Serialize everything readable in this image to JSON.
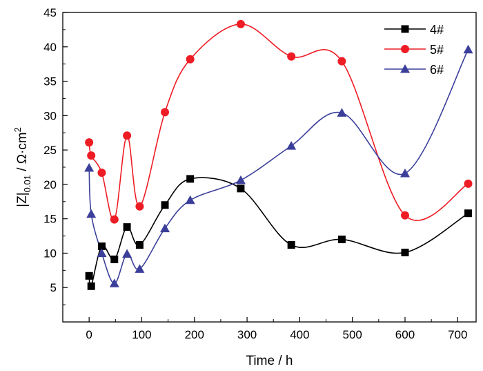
{
  "chart_data": {
    "type": "line",
    "title": "",
    "xlabel": "Time / h",
    "ylabel": {
      "prefix": "|Z|",
      "subscript": "0.01",
      "unit": " / Ω·cm",
      "superscript": "2"
    },
    "xlim": [
      -50,
      735
    ],
    "ylim": [
      0,
      45
    ],
    "xticks": [
      0,
      100,
      200,
      300,
      400,
      500,
      600,
      700
    ],
    "yticks": [
      5,
      10,
      15,
      20,
      25,
      30,
      35,
      40,
      45
    ],
    "grid": false,
    "legend_position": "top-right",
    "series": [
      {
        "name": "4#",
        "color": "#000000",
        "marker": "square",
        "x": [
          0,
          4,
          24,
          48,
          72,
          96,
          144,
          192,
          288,
          384,
          480,
          600,
          720
        ],
        "y": [
          6.7,
          5.2,
          11.0,
          9.1,
          13.8,
          11.2,
          17.0,
          20.8,
          19.4,
          11.2,
          12.0,
          10.1,
          15.8
        ]
      },
      {
        "name": "5#",
        "color": "#ee1c24",
        "marker": "circle",
        "x": [
          0,
          4,
          24,
          48,
          72,
          96,
          144,
          192,
          288,
          384,
          480,
          600,
          720
        ],
        "y": [
          26.1,
          24.2,
          21.7,
          14.9,
          27.1,
          16.8,
          30.5,
          38.2,
          43.3,
          38.6,
          37.9,
          15.5,
          20.1
        ]
      },
      {
        "name": "6#",
        "color": "#3b3f9a",
        "marker": "triangle",
        "x": [
          0,
          4,
          24,
          48,
          72,
          96,
          144,
          192,
          288,
          384,
          480,
          600,
          720
        ],
        "y": [
          22.4,
          15.7,
          10.0,
          5.6,
          9.9,
          7.7,
          13.6,
          17.7,
          20.6,
          25.6,
          30.4,
          21.6,
          39.6
        ]
      }
    ]
  }
}
